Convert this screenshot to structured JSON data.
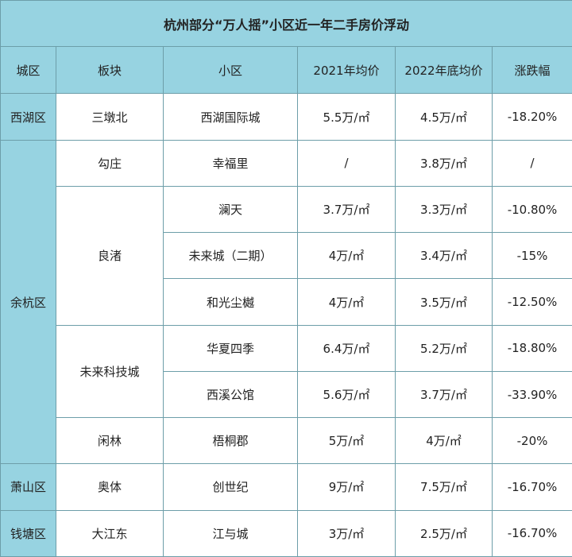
{
  "title": "杭州部分“万人摇”小区近一年二手房价浮动",
  "header": [
    "城区",
    "板块",
    "小区",
    "2021年均价",
    "2022年底均价",
    "涨跌幅"
  ],
  "districts": [
    {
      "name": "西湖区",
      "sectors": [
        {
          "name": "三墩北",
          "communities": [
            [
              "西湖国际城",
              "5.5万/㎡",
              "4.5万/㎡",
              "-18.20%"
            ]
          ]
        }
      ]
    },
    {
      "name": "余杭区",
      "sectors": [
        {
          "name": "勾庄",
          "communities": [
            [
              "幸福里",
              "/",
              "3.8万/㎡",
              "/"
            ]
          ]
        },
        {
          "name": "良渚",
          "communities": [
            [
              "澜天",
              "3.7万/㎡",
              "3.3万/㎡",
              "-10.80%"
            ],
            [
              "未来城（二期）",
              "4万/㎡",
              "3.4万/㎡",
              "-15%"
            ],
            [
              "和光尘樾",
              "4万/㎡",
              "3.5万/㎡",
              "-12.50%"
            ]
          ]
        },
        {
          "name": "未来科技城",
          "communities": [
            [
              "华夏四季",
              "6.4万/㎡",
              "5.2万/㎡",
              "-18.80%"
            ],
            [
              "西溪公馆",
              "5.6万/㎡",
              "3.7万/㎡",
              "-33.90%"
            ]
          ]
        },
        {
          "name": "闲林",
          "communities": [
            [
              "梧桐郡",
              "5万/㎡",
              "4万/㎡",
              "-20%"
            ]
          ]
        }
      ]
    },
    {
      "name": "萧山区",
      "sectors": [
        {
          "name": "奥体",
          "communities": [
            [
              "创世纪",
              "9万/㎡",
              "7.5万/㎡",
              "-16.70%"
            ]
          ]
        }
      ]
    },
    {
      "name": "钱塘区",
      "sectors": [
        {
          "name": "大江东",
          "communities": [
            [
              "江与城",
              "3万/㎡",
              "2.5万/㎡",
              "-16.70%"
            ]
          ]
        }
      ]
    }
  ]
}
